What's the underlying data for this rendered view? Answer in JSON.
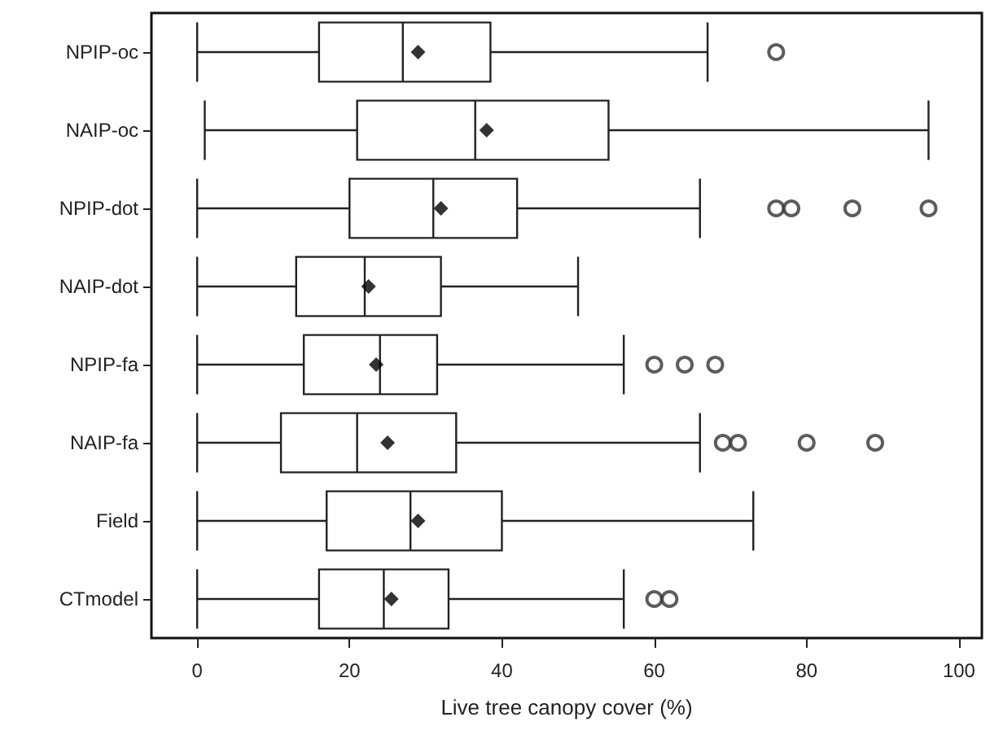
{
  "chart_data": {
    "type": "box",
    "orientation": "horizontal",
    "xlabel": "Live tree canopy cover (%)",
    "categories": [
      "NPIP-oc",
      "NAIP-oc",
      "NPIP-dot",
      "NAIP-dot",
      "NPIP-fa",
      "NAIP-fa",
      "Field",
      "CTmodel"
    ],
    "boxes": [
      {
        "low": 0,
        "q1": 16,
        "median": 27,
        "q3": 38.5,
        "high": 67,
        "mean": 29,
        "outliers": [
          76
        ]
      },
      {
        "low": 1,
        "q1": 21,
        "median": 36.5,
        "q3": 54,
        "high": 96,
        "mean": 38
      },
      {
        "low": 0,
        "q1": 20,
        "median": 31,
        "q3": 42,
        "high": 66,
        "mean": 32,
        "outliers": [
          76,
          78,
          86,
          96
        ]
      },
      {
        "low": 0,
        "q1": 13,
        "median": 22,
        "q3": 32,
        "high": 50,
        "mean": 22.5
      },
      {
        "low": 0,
        "q1": 14,
        "median": 24,
        "q3": 31.5,
        "high": 56,
        "mean": 23.5,
        "outliers": [
          60,
          64,
          68
        ]
      },
      {
        "low": 0,
        "q1": 11,
        "median": 21,
        "q3": 34,
        "high": 66,
        "mean": 25,
        "outliers": [
          69,
          71,
          80,
          89
        ]
      },
      {
        "low": 0,
        "q1": 17,
        "median": 28,
        "q3": 40,
        "high": 73,
        "mean": 29
      },
      {
        "low": 0,
        "q1": 16,
        "median": 24.5,
        "q3": 33,
        "high": 56,
        "mean": 25.5,
        "outliers": [
          60,
          62
        ]
      }
    ],
    "xlim": [
      -6,
      103
    ],
    "xticks": [
      0,
      20,
      40,
      60,
      80,
      100
    ],
    "grid": false
  }
}
